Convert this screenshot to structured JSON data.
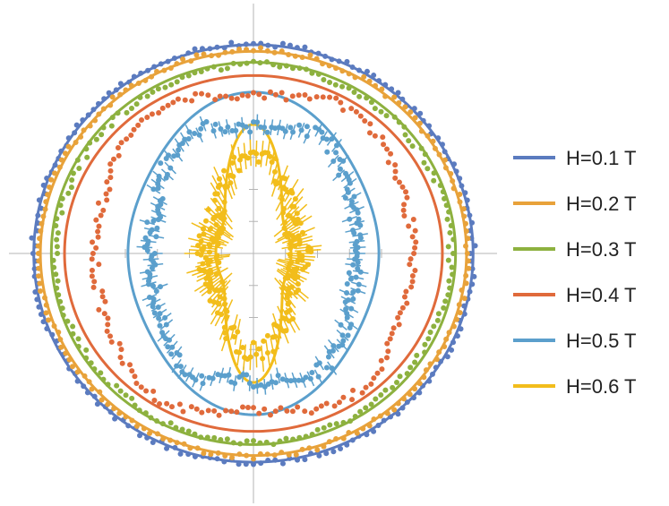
{
  "chart_data": {
    "type": "polar",
    "title": "",
    "xlabel": "",
    "ylabel": "",
    "grid": false,
    "legend_placement": "right",
    "axis_range_r": [
      0,
      1.06
    ],
    "series": [
      {
        "name": "H=0.1 T",
        "color": "#5b7bbf",
        "fit": {
          "a": 1.0,
          "b": 0.95,
          "k4": 0.0,
          "k6": 0.0
        },
        "points": {
          "a": 1.0,
          "b": 0.955,
          "k4": 0.0,
          "k6": 0.0,
          "noise": 0.012
        }
      },
      {
        "name": "H=0.2 T",
        "color": "#e8a23a",
        "fit": {
          "a": 0.97,
          "b": 0.92,
          "k4": 0.0,
          "k6": 0.0
        },
        "points": {
          "a": 0.975,
          "b": 0.925,
          "k4": 0.0,
          "k6": 0.0,
          "noise": 0.012
        }
      },
      {
        "name": "H=0.3 T",
        "color": "#8db13f",
        "fit": {
          "a": 0.92,
          "b": 0.87,
          "k4": 0.0,
          "k6": 0.0
        },
        "points": {
          "a": 0.9,
          "b": 0.86,
          "k4": 0.0,
          "k6": 0.0,
          "noise": 0.015
        }
      },
      {
        "name": "H=0.4 T",
        "color": "#e06a3b",
        "fit": {
          "a": 0.86,
          "b": 0.81,
          "k4": 0.0,
          "k6": 0.0
        },
        "points": {
          "a": 0.74,
          "b": 0.76,
          "k4": -0.04,
          "k6": 0.02,
          "noise": 0.02
        }
      },
      {
        "name": "H=0.5 T",
        "color": "#5b9fcc",
        "fit": {
          "a": 0.56,
          "b": 0.72,
          "k4": 0.02,
          "k6": 0.0
        },
        "points": {
          "a": 0.48,
          "b": 0.63,
          "k4": -0.05,
          "k6": 0.03,
          "noise": 0.03
        }
      },
      {
        "name": "H=0.6 T",
        "color": "#f2bd1b",
        "fit": {
          "a": 0.16,
          "b": 0.52,
          "k4": 0.1,
          "k6": -0.03
        },
        "points": {
          "a": 0.2,
          "b": 0.42,
          "k4": 0.06,
          "k6": 0.02,
          "noise": 0.05
        }
      }
    ]
  }
}
